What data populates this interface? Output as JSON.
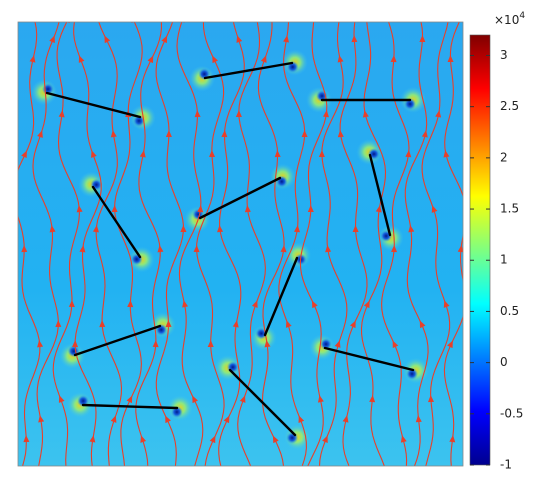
{
  "chart_data": {
    "type": "field",
    "colormap": "jet",
    "colorbar": {
      "multiplier": "×10",
      "exponent": "4",
      "clim": [
        -1,
        3.2
      ],
      "ticks": [
        -1,
        -0.5,
        0,
        0.5,
        1,
        1.5,
        2,
        2.5,
        3
      ]
    },
    "streamline_color": "#e8402a"
  }
}
